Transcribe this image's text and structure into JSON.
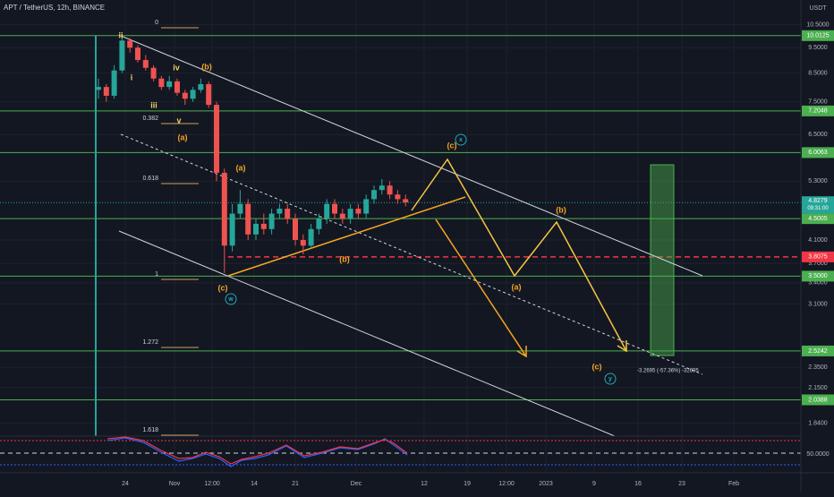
{
  "header": {
    "symbol": "APT / TetherUS, 12h, BINANCE",
    "currency": "USDT"
  },
  "chart_data": {
    "type": "candlestick",
    "open": [
      7.9,
      8.0,
      7.7,
      8.6,
      9.8,
      9.5,
      9.0,
      8.7,
      8.3,
      8.0,
      8.2,
      7.8,
      7.6,
      7.9,
      8.1,
      7.4,
      5.5,
      4.0,
      4.6,
      4.8,
      4.2,
      4.4,
      4.3,
      4.6,
      4.7,
      4.5,
      4.1,
      4.0,
      4.3,
      4.5,
      4.8,
      4.6,
      4.5,
      4.7,
      4.6,
      4.9,
      5.1,
      5.2,
      5.0,
      4.9
    ],
    "high": [
      8.3,
      8.1,
      8.8,
      10.0,
      9.9,
      9.6,
      9.2,
      8.8,
      8.4,
      8.4,
      8.3,
      7.9,
      8.0,
      8.3,
      8.2,
      7.5,
      5.6,
      4.8,
      5.1,
      4.9,
      4.5,
      4.6,
      4.7,
      4.8,
      4.8,
      4.6,
      4.2,
      4.4,
      4.6,
      4.9,
      4.9,
      4.7,
      4.8,
      4.8,
      5.0,
      5.2,
      5.35,
      5.3,
      5.1,
      5.0
    ],
    "low": [
      7.6,
      7.5,
      7.6,
      8.5,
      9.3,
      8.9,
      8.6,
      8.2,
      7.9,
      7.9,
      7.7,
      7.4,
      7.5,
      7.8,
      7.3,
      5.3,
      3.55,
      3.9,
      4.5,
      4.1,
      4.1,
      4.2,
      4.2,
      4.5,
      4.4,
      4.0,
      3.85,
      3.95,
      4.2,
      4.4,
      4.5,
      4.4,
      4.4,
      4.5,
      4.5,
      4.8,
      5.0,
      4.9,
      4.8,
      4.75
    ],
    "close": [
      8.0,
      7.7,
      8.6,
      9.8,
      9.5,
      9.0,
      8.7,
      8.3,
      8.0,
      8.2,
      7.8,
      7.6,
      7.9,
      8.1,
      7.4,
      5.5,
      4.0,
      4.6,
      4.8,
      4.2,
      4.4,
      4.3,
      4.6,
      4.7,
      4.5,
      4.1,
      4.0,
      4.3,
      4.5,
      4.8,
      4.6,
      4.5,
      4.7,
      4.6,
      4.9,
      5.1,
      5.2,
      5.0,
      4.9,
      4.83
    ],
    "up_color": "#26a69a",
    "down_color": "#ef5350",
    "ylim": [
      1.74,
      11.7
    ],
    "log_scale": true,
    "yticks": [
      {
        "value": 10.5,
        "label": "10.5000"
      },
      {
        "value": 9.5,
        "label": "9.5000"
      },
      {
        "value": 8.5,
        "label": "8.5000"
      },
      {
        "value": 7.5,
        "label": "7.5000"
      },
      {
        "value": 6.5,
        "label": "6.5000"
      },
      {
        "value": 5.3,
        "label": "5.3000"
      },
      {
        "value": 4.1,
        "label": "4.1000"
      },
      {
        "value": 3.7,
        "label": "3.7000"
      },
      {
        "value": 3.4,
        "label": "3.4000"
      },
      {
        "value": 3.1,
        "label": "3.1000"
      },
      {
        "value": 2.35,
        "label": "2.3500"
      },
      {
        "value": 2.15,
        "label": "2.1500"
      },
      {
        "value": 1.84,
        "label": "1.8400"
      }
    ],
    "levels": [
      {
        "value": 10.0125,
        "label": "10.0125"
      },
      {
        "value": 7.2048,
        "label": "7.2048"
      },
      {
        "value": 6.0063,
        "label": "6.0063"
      },
      {
        "value": 4.5005,
        "label": "4.5005"
      },
      {
        "value": 3.5,
        "label": "3.5000"
      },
      {
        "value": 2.5242,
        "label": "2.5242"
      },
      {
        "value": 2.0388,
        "label": "2.0388"
      }
    ],
    "level_color": "#4caf50",
    "red_level": {
      "value": 3.8075,
      "label": "3.8075",
      "color": "#f23645"
    },
    "current_price": {
      "value": 4.8279,
      "label": "4.8279",
      "countdown": "09:31:00"
    },
    "time_labels": [
      "24",
      "Nov",
      "12:00",
      "14",
      "21",
      "Dec",
      "12",
      "19",
      "12:00",
      "2023",
      "9",
      "16",
      "23",
      "Feb"
    ],
    "fib_labels": [
      "0",
      "0.382",
      "0.618",
      "1",
      "1.272",
      "1.618"
    ],
    "wave_labels": [
      "ii",
      "i",
      "iv",
      "iii",
      "v",
      "(b)",
      "(a)",
      "(a)",
      "(b)",
      "(c)",
      "(c)",
      "(b)",
      "(a)",
      "(c)",
      "w",
      "x",
      "y"
    ],
    "measure_label": "-3.2695 (-57.36%) -32695",
    "indicator_label": "50.0000"
  }
}
